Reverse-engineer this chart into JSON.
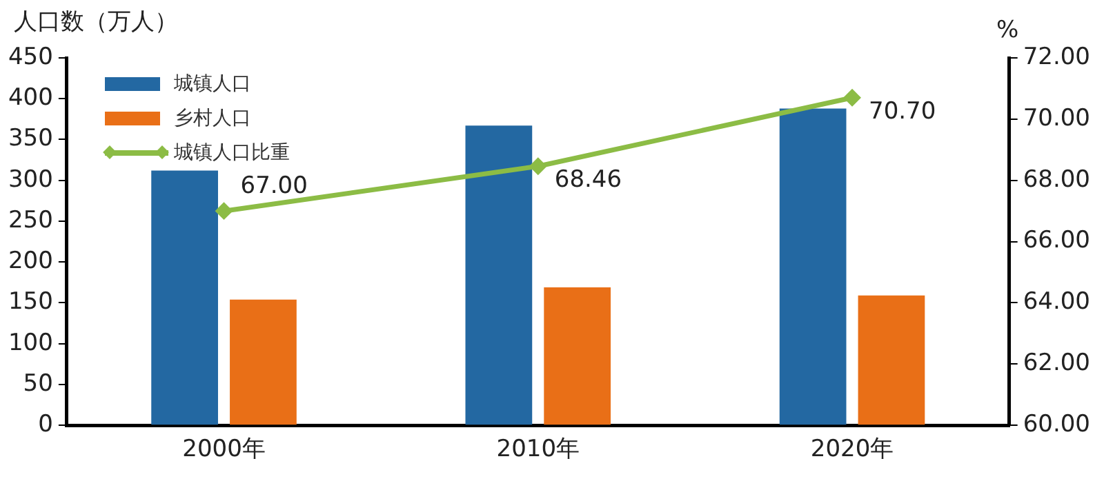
{
  "chart_data": {
    "type": "bar",
    "ylabel": "人口数（万人）",
    "y2label": "%",
    "categories": [
      "2000年",
      "2010年",
      "2020年"
    ],
    "series": [
      {
        "name": "城镇人口",
        "color": "#2368a2",
        "values": [
          312,
          367,
          388
        ]
      },
      {
        "name": "乡村人口",
        "color": "#e96f17",
        "values": [
          154,
          169,
          159
        ]
      },
      {
        "name": "城镇人口比重",
        "type": "line",
        "axis": "y2",
        "color": "#8cbc45",
        "marker": "diamond",
        "values": [
          67.0,
          68.46,
          70.7
        ],
        "value_labels": [
          "67.00",
          "68.46",
          "70.70"
        ]
      }
    ],
    "ylim": [
      0,
      450
    ],
    "yticks": [
      0,
      50,
      100,
      150,
      200,
      250,
      300,
      350,
      400,
      450
    ],
    "y2lim": [
      60,
      72
    ],
    "y2ticks": [
      {
        "value": 60,
        "label": "60.00"
      },
      {
        "value": 62,
        "label": "62.00"
      },
      {
        "value": 64,
        "label": "64.00"
      },
      {
        "value": 66,
        "label": "66.00"
      },
      {
        "value": 68,
        "label": "68.00"
      },
      {
        "value": 70,
        "label": "70.00"
      },
      {
        "value": 72,
        "label": "72.00"
      }
    ],
    "grid": false,
    "legend": "top left"
  }
}
